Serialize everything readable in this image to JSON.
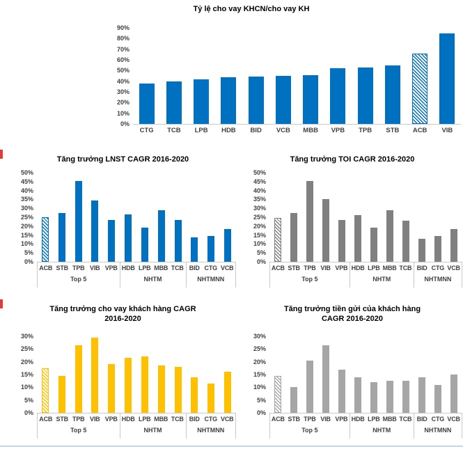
{
  "colors": {
    "blue": "#0070C0",
    "dark_gray": "#808080",
    "light_gray": "#A6A6A6",
    "yellow": "#FFC000",
    "axis_line": "#C9C9C9",
    "footer_divider": "#C7D5E8",
    "marker_red": "#E53935"
  },
  "chart_data": [
    {
      "type": "bar",
      "title": "Tỷ lệ cho vay KHCN/cho vay KH",
      "color": "#0070C0",
      "hatch_category": "ACB",
      "categories": [
        "CTG",
        "TCB",
        "LPB",
        "HDB",
        "BID",
        "VCB",
        "MBB",
        "VPB",
        "TPB",
        "STB",
        "ACB",
        "VIB"
      ],
      "values": [
        38,
        40,
        42,
        44,
        44.5,
        45,
        45.5,
        52,
        53,
        55,
        66,
        85
      ],
      "ylabel_format": "percent",
      "ylim": [
        0,
        90
      ],
      "ystep": 10,
      "grid": false,
      "legend": "none",
      "groups": []
    },
    {
      "type": "bar",
      "title": "Tăng trưởng LNST CAGR 2016-2020",
      "color": "#0070C0",
      "hatch_category": "ACB",
      "categories": [
        "ACB",
        "STB",
        "TPB",
        "VIB",
        "VPB",
        "HDB",
        "LPB",
        "MBB",
        "TCB",
        "BID",
        "CTG",
        "VCB"
      ],
      "values": [
        25,
        27.5,
        45.5,
        34.5,
        23.5,
        26.5,
        19,
        29,
        23.5,
        13.5,
        14.5,
        18.5
      ],
      "ylabel_format": "percent",
      "ylim": [
        0,
        50
      ],
      "ystep": 5,
      "grid": false,
      "legend": "none",
      "groups": [
        {
          "label": "Top 5",
          "span": 5
        },
        {
          "label": "NHTM",
          "span": 4
        },
        {
          "label": "NHTMNN",
          "span": 3
        }
      ]
    },
    {
      "type": "bar",
      "title": "Tăng trưởng TOI CAGR 2016-2020",
      "color": "#808080",
      "hatch_category": "ACB",
      "categories": [
        "ACB",
        "STB",
        "TPB",
        "VIB",
        "VPB",
        "HDB",
        "LPB",
        "MBB",
        "TCB",
        "BID",
        "CTG",
        "VCB"
      ],
      "values": [
        24.5,
        27.5,
        45.5,
        35,
        23.5,
        26,
        19,
        29,
        23,
        13,
        14.5,
        18.5
      ],
      "ylabel_format": "percent",
      "ylim": [
        0,
        50
      ],
      "ystep": 5,
      "grid": false,
      "legend": "none",
      "groups": [
        {
          "label": "Top 5",
          "span": 5
        },
        {
          "label": "NHTM",
          "span": 4
        },
        {
          "label": "NHTMNN",
          "span": 3
        }
      ]
    },
    {
      "type": "bar",
      "title": "Tăng trưởng cho vay khách hàng CAGR\n2016-2020",
      "color": "#FFC000",
      "hatch_category": "ACB",
      "categories": [
        "ACB",
        "STB",
        "TPB",
        "VIB",
        "VPB",
        "HDB",
        "LPB",
        "MBB",
        "TCB",
        "BID",
        "CTG",
        "VCB"
      ],
      "values": [
        17.5,
        14.5,
        26.5,
        29.5,
        19,
        21.5,
        22,
        18.5,
        18,
        14,
        11.5,
        16
      ],
      "ylabel_format": "percent",
      "ylim": [
        0,
        30
      ],
      "ystep": 5,
      "grid": false,
      "legend": "none",
      "groups": [
        {
          "label": "Top 5",
          "span": 5
        },
        {
          "label": "NHTM",
          "span": 4
        },
        {
          "label": "NHTMNN",
          "span": 3
        }
      ]
    },
    {
      "type": "bar",
      "title": "Tăng trưởng tiền gửi của khách hàng\nCAGR 2016-2020",
      "color": "#A6A6A6",
      "hatch_category": "ACB",
      "categories": [
        "ACB",
        "STB",
        "TPB",
        "VIB",
        "VPB",
        "HDB",
        "LPB",
        "MBB",
        "TCB",
        "BID",
        "CTG",
        "VCB"
      ],
      "values": [
        14.5,
        10,
        20.5,
        26.5,
        17,
        14,
        12,
        12.5,
        12.5,
        14,
        11,
        15
      ],
      "ylabel_format": "percent",
      "ylim": [
        0,
        30
      ],
      "ystep": 5,
      "grid": false,
      "legend": "none",
      "groups": [
        {
          "label": "Top 5",
          "span": 5
        },
        {
          "label": "NHTM",
          "span": 4
        },
        {
          "label": "NHTMNN",
          "span": 3
        }
      ]
    }
  ]
}
